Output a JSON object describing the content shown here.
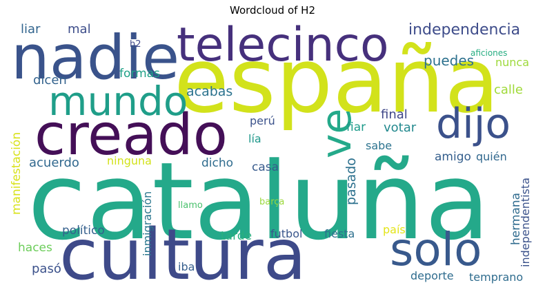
{
  "title": "Wordcloud of H2",
  "words": [
    {
      "text": "españa",
      "color": "#d2e21b"
    },
    {
      "text": "cataluña",
      "color": "#24a98a"
    },
    {
      "text": "cultura",
      "color": "#3e4a89"
    },
    {
      "text": "nadie",
      "color": "#3a538b"
    },
    {
      "text": "telecinco",
      "color": "#46307c"
    },
    {
      "text": "creado",
      "color": "#440f57"
    },
    {
      "text": "mundo",
      "color": "#1f9e89"
    },
    {
      "text": "dijo",
      "color": "#3b518b"
    },
    {
      "text": "solo",
      "color": "#38598c"
    },
    {
      "text": "ve",
      "color": "#24a98a"
    },
    {
      "text": "independencia",
      "color": "#3e4c8a"
    },
    {
      "text": "puedes",
      "color": "#2d718e"
    },
    {
      "text": "liar",
      "color": "#32658e"
    },
    {
      "text": "mal",
      "color": "#3d4d8a"
    },
    {
      "text": "h2",
      "color": "#3f4889"
    },
    {
      "text": "aficiones",
      "color": "#26ad81"
    },
    {
      "text": "nunca",
      "color": "#9dd93b"
    },
    {
      "text": "formas",
      "color": "#1fa187"
    },
    {
      "text": "dicen",
      "color": "#33628d"
    },
    {
      "text": "acabas",
      "color": "#2c738e"
    },
    {
      "text": "calle",
      "color": "#a0da39"
    },
    {
      "text": "final",
      "color": "#3f4788"
    },
    {
      "text": "perú",
      "color": "#3b528b"
    },
    {
      "text": "fiar",
      "color": "#1e9b8a"
    },
    {
      "text": "votar",
      "color": "#23898e"
    },
    {
      "text": "lía",
      "color": "#1f988b"
    },
    {
      "text": "sabe",
      "color": "#2c738e"
    },
    {
      "text": "pasado",
      "color": "#2d718e"
    },
    {
      "text": "manifestación",
      "color": "#d8e219"
    },
    {
      "text": "acuerdo",
      "color": "#31688e"
    },
    {
      "text": "ninguna",
      "color": "#d2e21b"
    },
    {
      "text": "dicho",
      "color": "#2f6c8e"
    },
    {
      "text": "casa",
      "color": "#375a8c"
    },
    {
      "text": "amigo",
      "color": "#355f8d"
    },
    {
      "text": "quién",
      "color": "#31688e"
    },
    {
      "text": "independentista",
      "color": "#3b528b"
    },
    {
      "text": "inmigración",
      "color": "#2a768e"
    },
    {
      "text": "llamo",
      "color": "#4ac16d"
    },
    {
      "text": "barça",
      "color": "#9bd93c"
    },
    {
      "text": "país",
      "color": "#e3e418"
    },
    {
      "text": "hermana",
      "color": "#2f6b8e"
    },
    {
      "text": "político",
      "color": "#35608d"
    },
    {
      "text": "futbol",
      "color": "#39568c"
    },
    {
      "text": "fiesta",
      "color": "#2d708e"
    },
    {
      "text": "tarde",
      "color": "#29af7f"
    },
    {
      "text": "haces",
      "color": "#6ccd5a"
    },
    {
      "text": "pasó",
      "color": "#3b518b"
    },
    {
      "text": "iba",
      "color": "#355e8d"
    },
    {
      "text": "deporte",
      "color": "#2f6c8e"
    },
    {
      "text": "temprano",
      "color": "#2f6c8e"
    }
  ]
}
